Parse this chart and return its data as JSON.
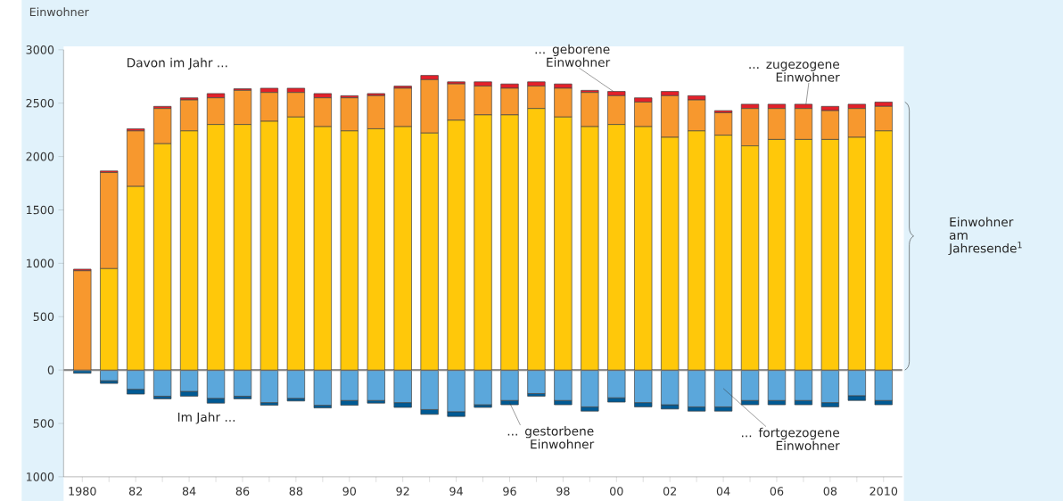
{
  "chart_data": {
    "type": "bar",
    "stacked": true,
    "ylabel": "Einwohner",
    "categories": [
      "1980",
      null,
      "82",
      null,
      "84",
      null,
      "86",
      null,
      "88",
      null,
      "90",
      null,
      "92",
      null,
      "94",
      null,
      "96",
      null,
      "98",
      null,
      "00",
      null,
      "02",
      null,
      "04",
      null,
      "06",
      null,
      "08",
      null,
      "2010"
    ],
    "series": [
      {
        "color": "#ffc80a",
        "values": [
          0,
          950,
          1720,
          2120,
          2240,
          2300,
          2300,
          2330,
          2370,
          2280,
          2240,
          2260,
          2280,
          2220,
          2340,
          2390,
          2390,
          2450,
          2370,
          2280,
          2300,
          2280,
          2180,
          2240,
          2200,
          2100,
          2160,
          2160,
          2160,
          2180,
          2240
        ]
      },
      {
        "name": "... zugezogene Einwohner",
        "color": "#f7982e",
        "values": [
          930,
          900,
          520,
          330,
          290,
          250,
          320,
          270,
          230,
          270,
          310,
          310,
          360,
          500,
          340,
          270,
          250,
          210,
          270,
          320,
          270,
          230,
          390,
          290,
          210,
          350,
          290,
          290,
          270,
          270,
          230
        ]
      },
      {
        "name": "... geborene Einwohner",
        "color": "#e3202a",
        "values": [
          15,
          15,
          20,
          20,
          20,
          40,
          15,
          40,
          40,
          40,
          20,
          20,
          20,
          40,
          20,
          40,
          40,
          40,
          40,
          20,
          40,
          40,
          40,
          40,
          20,
          40,
          40,
          40,
          40,
          40,
          40
        ]
      },
      {
        "name": "... fortgezogene Einwohner",
        "color": "#5ba7db",
        "values": [
          0,
          -100,
          -180,
          -245,
          -200,
          -265,
          -245,
          -305,
          -265,
          -330,
          -285,
          -285,
          -305,
          -370,
          -390,
          -325,
          -285,
          -220,
          -285,
          -345,
          -260,
          -305,
          -325,
          -345,
          -345,
          -285,
          -285,
          -285,
          -305,
          -240,
          -285
        ]
      },
      {
        "name": "... gestorbene Einwohner",
        "color": "#005a94",
        "values": [
          -30,
          -25,
          -45,
          -25,
          -45,
          -45,
          -25,
          -25,
          -25,
          -25,
          -45,
          -25,
          -45,
          -45,
          -45,
          -25,
          -40,
          -25,
          -40,
          -40,
          -40,
          -40,
          -40,
          -40,
          -40,
          -40,
          -40,
          -40,
          -40,
          -45,
          -40
        ]
      }
    ],
    "ylim": [
      -1000,
      3000
    ],
    "yticks": [
      {
        "value": -1000,
        "label": "1000"
      },
      {
        "value": -500,
        "label": "500"
      },
      0,
      500,
      1000,
      1500,
      2000,
      2500,
      3000
    ],
    "annotations": [
      "Davon im Jahr ...",
      "Im Jahr ...",
      "Einwohner am Jahresende$^{1}$"
    ]
  }
}
